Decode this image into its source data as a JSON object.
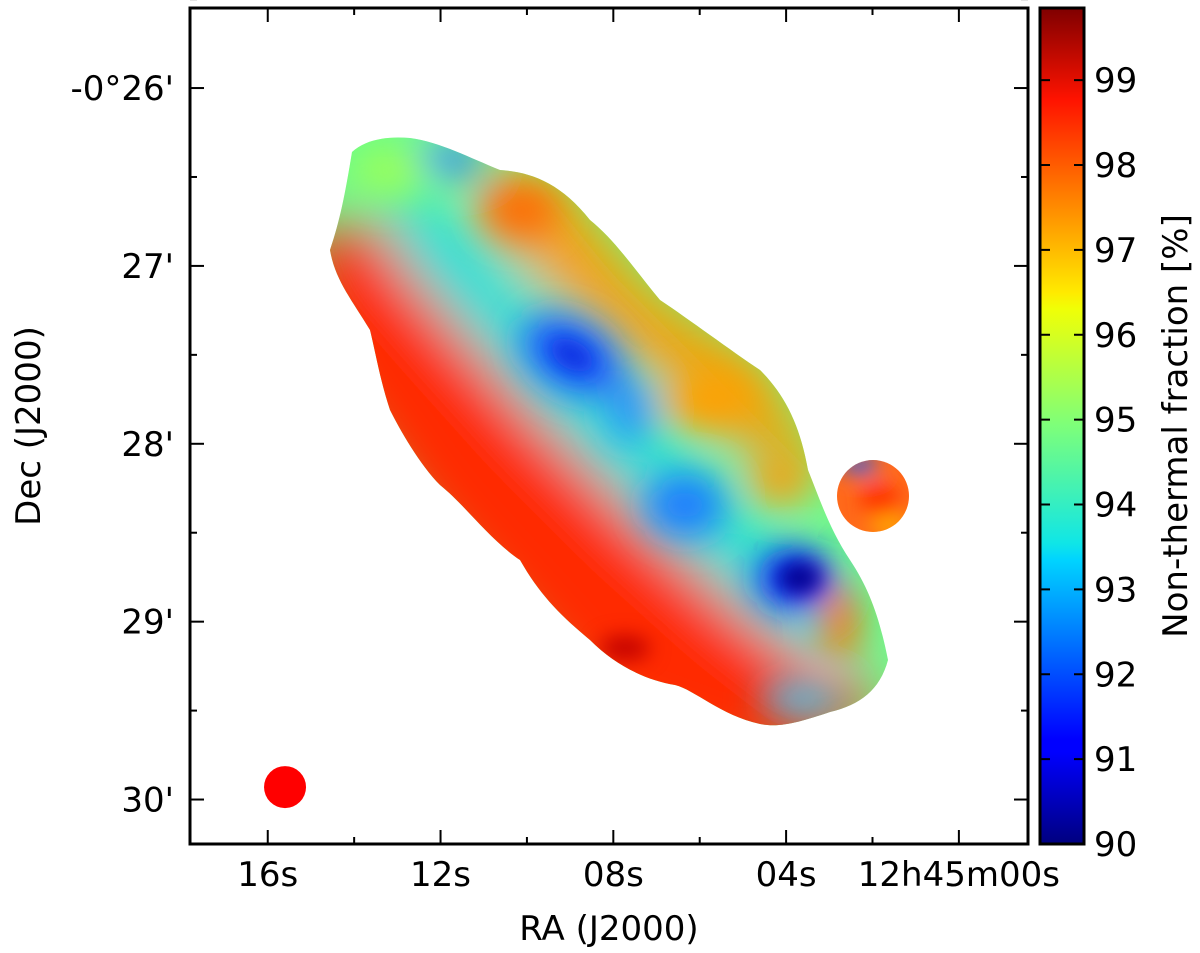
{
  "chart_data": {
    "type": "heatmap",
    "title": "",
    "xlabel": "RA (J2000)",
    "ylabel": "Dec (J2000)",
    "x_ticks": [
      {
        "label": "16s",
        "ra_s": 16
      },
      {
        "label": "12s",
        "ra_s": 12
      },
      {
        "label": "08s",
        "ra_s": 8
      },
      {
        "label": "04s",
        "ra_s": 4
      },
      {
        "label": "12h45m00s",
        "ra_s": 0
      }
    ],
    "y_ticks": [
      {
        "label": "-0°26'",
        "dec_arcmin": -26
      },
      {
        "label": "27'",
        "dec_arcmin": -27
      },
      {
        "label": "28'",
        "dec_arcmin": -28
      },
      {
        "label": "29'",
        "dec_arcmin": -29
      },
      {
        "label": "30'",
        "dec_arcmin": -30
      }
    ],
    "xlim_ra_s": [
      17.8,
      -1.6
    ],
    "ylim_dec_arcmin": [
      -30.25,
      -25.55
    ],
    "colorbar": {
      "label": "Non-thermal fraction [%]",
      "range": [
        90,
        99.85
      ],
      "ticks": [
        "90",
        "91",
        "92",
        "93",
        "94",
        "95",
        "96",
        "97",
        "98",
        "99"
      ],
      "colormap": "jet"
    },
    "beam": {
      "ra_s": 15.6,
      "dec_arcmin": -29.93,
      "color": "#ff0000"
    },
    "regions": [
      {
        "name": "southern-edge",
        "ra_s": 11.5,
        "dec_arcmin": -28.2,
        "value": 98.3
      },
      {
        "name": "central-minimum",
        "ra_s": 8.5,
        "dec_arcmin": -27.5,
        "value": 91.6
      },
      {
        "name": "southeast-minimum",
        "ra_s": 3.9,
        "dec_arcmin": -28.75,
        "value": 90.5
      },
      {
        "name": "mid-minimum",
        "ra_s": 6.0,
        "dec_arcmin": -28.35,
        "value": 92.5
      },
      {
        "name": "northern-ridge",
        "ra_s": 9.0,
        "dec_arcmin": -26.6,
        "value": 97.8
      },
      {
        "name": "companion-source",
        "ra_s": 1.8,
        "dec_arcmin": -28.3,
        "value": 98.3
      }
    ]
  }
}
